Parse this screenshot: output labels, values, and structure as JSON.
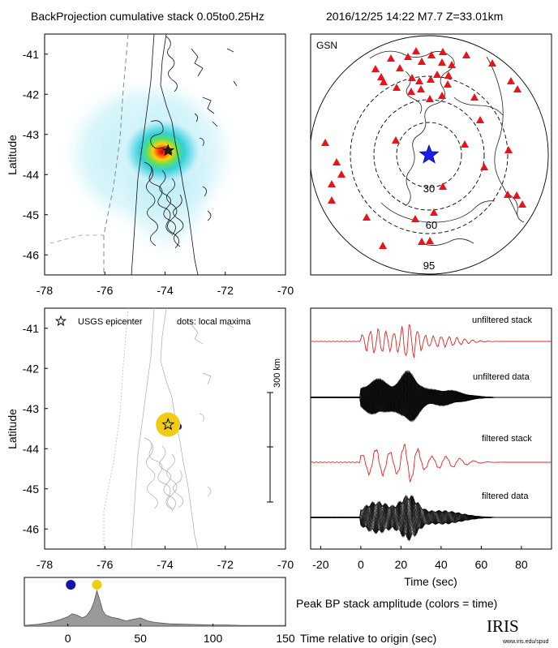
{
  "header": {
    "title": "BackProjection cumulative stack 0.05to0.25Hz",
    "event": "2016/12/25 14:22  M7.7  Z=33.01km"
  },
  "logo": {
    "text": "IRIS",
    "url": "www.iris.edu/spud"
  },
  "colors": {
    "hot": "#e31a1c",
    "station": "#e8141b",
    "epicenter_star": "#1a1aee",
    "early_dot": "#1414aa",
    "late_dot": "#f2cc10",
    "stack_red": "#e82020",
    "fill_gray": "#9a9a9a"
  },
  "chart_data": [
    {
      "id": "bp-heatmap",
      "type": "heatmap",
      "ylabel": "Latitude",
      "xlim": [
        -78,
        -70
      ],
      "ylim": [
        -46.5,
        -40.5
      ],
      "xticks": [
        "-78",
        "-76",
        "-74",
        "-72",
        "-70"
      ],
      "yticks": [
        "-41",
        "-42",
        "-43",
        "-44",
        "-45",
        "-46"
      ],
      "peak": {
        "lon": -73.85,
        "lat": -43.35
      },
      "epicenter": {
        "lon": -73.9,
        "lat": -43.4,
        "marker": "star"
      }
    },
    {
      "id": "gsn-map",
      "type": "scatter",
      "label": "GSN",
      "ring_labels": [
        "30",
        "60",
        "95"
      ],
      "station_count": 48,
      "epicenter_marker": "star"
    },
    {
      "id": "local-maxima-map",
      "type": "scatter",
      "ylabel": "Latitude",
      "xlim": [
        -78,
        -70
      ],
      "ylim": [
        -46.5,
        -40.5
      ],
      "xticks": [
        "-78",
        "-76",
        "-74",
        "-72",
        "-70"
      ],
      "yticks": [
        "-41",
        "-42",
        "-43",
        "-44",
        "-45",
        "-46"
      ],
      "legend": {
        "star_label": "USGS epicenter",
        "dots_label": "dots: local maxima"
      },
      "scale_bar": "300 km",
      "points": [
        {
          "lon": -73.55,
          "lat": -43.45,
          "color": "early",
          "size": "small"
        },
        {
          "lon": -73.9,
          "lat": -43.4,
          "color": "late",
          "size": "large"
        }
      ],
      "epicenter": {
        "lon": -73.9,
        "lat": -43.4
      }
    },
    {
      "id": "seismograms",
      "type": "line",
      "xlabel": "Time (sec)",
      "xlim": [
        -25,
        95
      ],
      "xticks": [
        "-20",
        "0",
        "20",
        "40",
        "60",
        "80"
      ],
      "traces": [
        "unfiltered stack",
        "unfiltered data",
        "filtered stack",
        "filtered data"
      ]
    },
    {
      "id": "peak-amplitude",
      "type": "area",
      "title": "Peak BP stack amplitude (colors = time)",
      "xlabel": "Time relative to origin (sec)",
      "xlim": [
        -30,
        150
      ],
      "xticks": [
        "0",
        "50",
        "100",
        "150"
      ],
      "x": [
        -30,
        -20,
        -10,
        -5,
        0,
        3,
        6,
        10,
        13,
        16,
        18,
        20,
        22,
        24,
        26,
        30,
        35,
        40,
        45,
        50,
        55,
        60,
        65,
        70,
        80,
        90,
        100,
        110,
        120,
        130,
        140,
        150
      ],
      "y": [
        0.02,
        0.05,
        0.12,
        0.18,
        0.25,
        0.33,
        0.3,
        0.22,
        0.28,
        0.45,
        0.65,
        0.95,
        0.7,
        0.42,
        0.3,
        0.24,
        0.2,
        0.14,
        0.18,
        0.22,
        0.14,
        0.1,
        0.08,
        0.06,
        0.05,
        0.04,
        0.03,
        0.03,
        0.02,
        0.02,
        0.02,
        0.02
      ],
      "markers": [
        {
          "x": 2,
          "y": 1.12,
          "color": "early"
        },
        {
          "x": 20,
          "y": 1.12,
          "color": "late"
        }
      ]
    }
  ]
}
